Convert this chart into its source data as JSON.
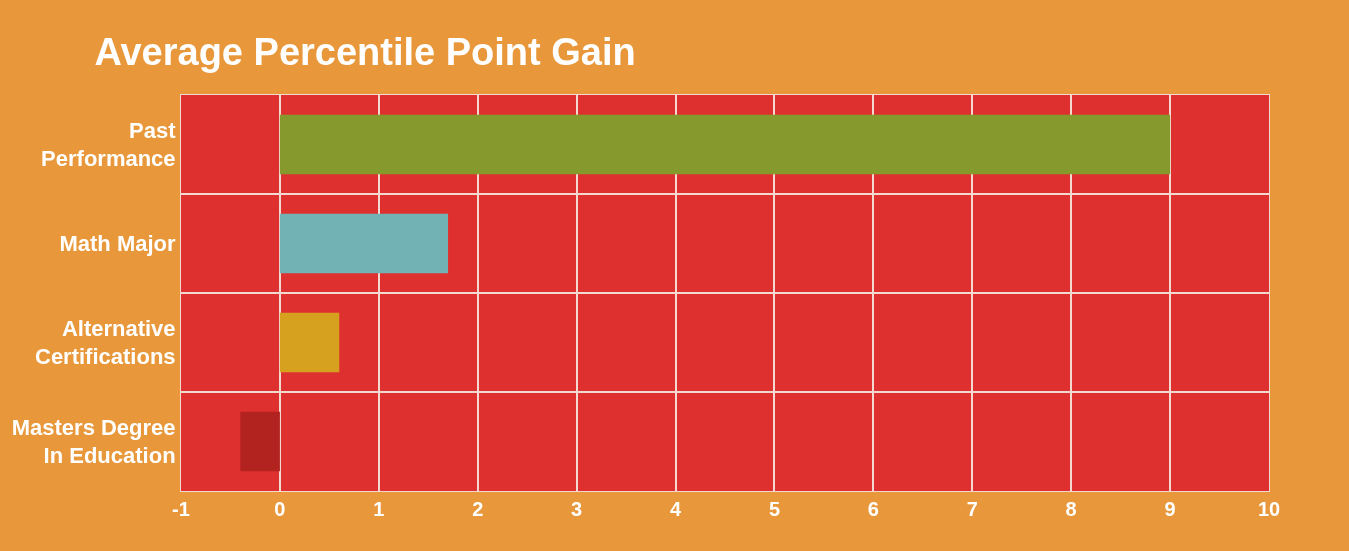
{
  "chart_data": {
    "type": "bar",
    "orientation": "horizontal",
    "title": "Average Percentile Point Gain",
    "categories": [
      "Past\nPerformance",
      "Math Major",
      "Alternative\nCertifications",
      "Masters Degree\nIn Education"
    ],
    "values": [
      9.0,
      1.7,
      0.6,
      -0.4
    ],
    "colors": [
      "#85992c",
      "#72b2b5",
      "#d6a11e",
      "#b2231f"
    ],
    "xlim": [
      -1,
      10
    ],
    "xticks": [
      -1,
      0,
      1,
      2,
      3,
      4,
      5,
      6,
      7,
      8,
      9,
      10
    ],
    "grid": true
  }
}
